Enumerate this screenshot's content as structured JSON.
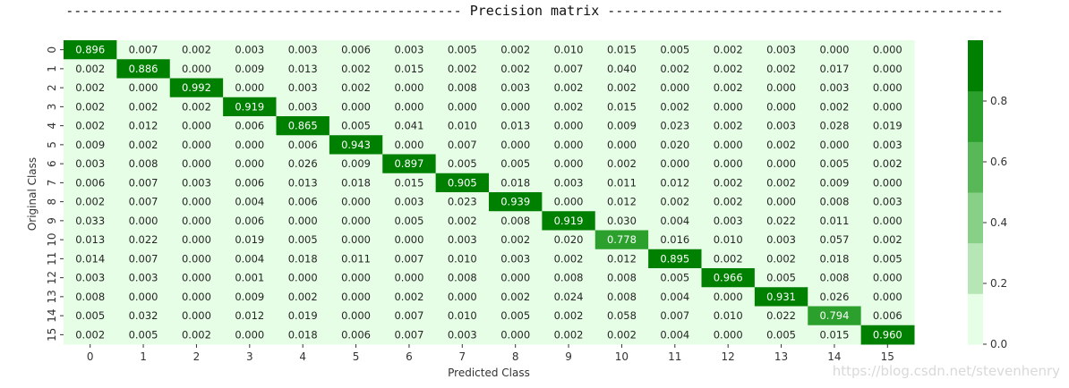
{
  "chart_data": {
    "type": "heatmap",
    "title": "------------------------------------------------- Precision matrix -------------------------------------------------",
    "xlabel": "Predicted Class",
    "ylabel": "Original Class",
    "x_categories": [
      "0",
      "1",
      "2",
      "3",
      "4",
      "5",
      "6",
      "7",
      "8",
      "9",
      "10",
      "11",
      "12",
      "13",
      "14",
      "15"
    ],
    "y_categories": [
      "0",
      "1",
      "2",
      "3",
      "4",
      "5",
      "6",
      "7",
      "8",
      "9",
      "10",
      "11",
      "12",
      "13",
      "14",
      "15"
    ],
    "values": [
      [
        "0.896",
        "0.007",
        "0.002",
        "0.003",
        "0.003",
        "0.006",
        "0.003",
        "0.005",
        "0.002",
        "0.010",
        "0.015",
        "0.005",
        "0.002",
        "0.003",
        "0.000",
        "0.000"
      ],
      [
        "0.002",
        "0.886",
        "0.000",
        "0.009",
        "0.013",
        "0.002",
        "0.015",
        "0.002",
        "0.002",
        "0.007",
        "0.040",
        "0.002",
        "0.002",
        "0.002",
        "0.017",
        "0.000"
      ],
      [
        "0.002",
        "0.000",
        "0.992",
        "0.000",
        "0.003",
        "0.002",
        "0.000",
        "0.008",
        "0.003",
        "0.002",
        "0.002",
        "0.000",
        "0.002",
        "0.000",
        "0.003",
        "0.000"
      ],
      [
        "0.002",
        "0.002",
        "0.002",
        "0.919",
        "0.003",
        "0.000",
        "0.000",
        "0.000",
        "0.000",
        "0.002",
        "0.015",
        "0.002",
        "0.000",
        "0.000",
        "0.002",
        "0.000"
      ],
      [
        "0.002",
        "0.012",
        "0.000",
        "0.006",
        "0.865",
        "0.005",
        "0.041",
        "0.010",
        "0.013",
        "0.000",
        "0.009",
        "0.023",
        "0.002",
        "0.003",
        "0.028",
        "0.019"
      ],
      [
        "0.009",
        "0.002",
        "0.000",
        "0.000",
        "0.006",
        "0.943",
        "0.000",
        "0.007",
        "0.000",
        "0.000",
        "0.000",
        "0.020",
        "0.000",
        "0.002",
        "0.000",
        "0.003"
      ],
      [
        "0.003",
        "0.008",
        "0.000",
        "0.000",
        "0.026",
        "0.009",
        "0.897",
        "0.005",
        "0.005",
        "0.000",
        "0.002",
        "0.000",
        "0.000",
        "0.000",
        "0.005",
        "0.002"
      ],
      [
        "0.006",
        "0.007",
        "0.003",
        "0.006",
        "0.013",
        "0.018",
        "0.015",
        "0.905",
        "0.018",
        "0.003",
        "0.011",
        "0.012",
        "0.002",
        "0.002",
        "0.009",
        "0.000"
      ],
      [
        "0.002",
        "0.007",
        "0.000",
        "0.004",
        "0.006",
        "0.000",
        "0.003",
        "0.023",
        "0.939",
        "0.000",
        "0.012",
        "0.002",
        "0.002",
        "0.000",
        "0.008",
        "0.003"
      ],
      [
        "0.033",
        "0.000",
        "0.000",
        "0.006",
        "0.000",
        "0.000",
        "0.005",
        "0.002",
        "0.008",
        "0.919",
        "0.030",
        "0.004",
        "0.003",
        "0.022",
        "0.011",
        "0.000"
      ],
      [
        "0.013",
        "0.022",
        "0.000",
        "0.019",
        "0.005",
        "0.000",
        "0.000",
        "0.003",
        "0.002",
        "0.020",
        "0.778",
        "0.016",
        "0.010",
        "0.003",
        "0.057",
        "0.002"
      ],
      [
        "0.014",
        "0.007",
        "0.000",
        "0.004",
        "0.018",
        "0.011",
        "0.007",
        "0.010",
        "0.003",
        "0.002",
        "0.012",
        "0.895",
        "0.002",
        "0.002",
        "0.018",
        "0.005"
      ],
      [
        "0.003",
        "0.003",
        "0.000",
        "0.001",
        "0.000",
        "0.000",
        "0.000",
        "0.008",
        "0.000",
        "0.008",
        "0.008",
        "0.005",
        "0.966",
        "0.005",
        "0.008",
        "0.000"
      ],
      [
        "0.008",
        "0.000",
        "0.000",
        "0.009",
        "0.002",
        "0.000",
        "0.002",
        "0.000",
        "0.002",
        "0.024",
        "0.008",
        "0.004",
        "0.000",
        "0.931",
        "0.026",
        "0.000"
      ],
      [
        "0.005",
        "0.032",
        "0.000",
        "0.012",
        "0.019",
        "0.000",
        "0.007",
        "0.010",
        "0.005",
        "0.002",
        "0.058",
        "0.007",
        "0.010",
        "0.022",
        "0.794",
        "0.006"
      ],
      [
        "0.002",
        "0.005",
        "0.002",
        "0.000",
        "0.018",
        "0.006",
        "0.007",
        "0.003",
        "0.000",
        "0.002",
        "0.002",
        "0.004",
        "0.000",
        "0.005",
        "0.015",
        "0.960"
      ]
    ],
    "zlim": [
      0,
      1
    ],
    "colorbar": {
      "ticks": [
        "0.0",
        "0.2",
        "0.4",
        "0.6",
        "0.8"
      ],
      "levels": 6,
      "colors": [
        "#e6fde6",
        "#b6e6b6",
        "#88d088",
        "#58b858",
        "#2ca02c",
        "#008000"
      ]
    }
  },
  "watermark": "https://blog.csdn.net/stevenhenry"
}
